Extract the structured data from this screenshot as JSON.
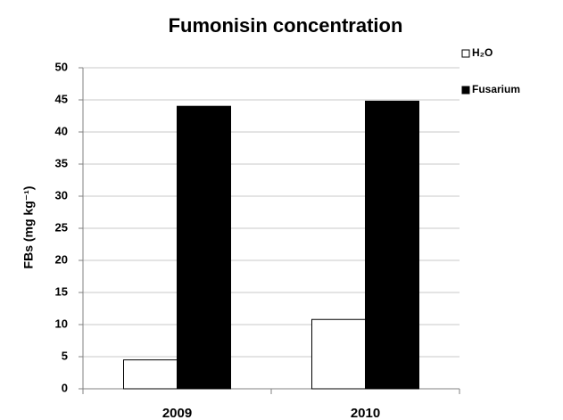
{
  "chart_data": {
    "type": "bar",
    "title": "Fumonisin concentration",
    "y_label": "FBs (mg kg⁻¹)",
    "categories": [
      "2009",
      "2010"
    ],
    "series": [
      {
        "name": "H₂O",
        "color": "#ffffff",
        "values": [
          4.5,
          10.8
        ]
      },
      {
        "name": "Fusarium",
        "color": "#000000",
        "values": [
          44,
          44.8
        ]
      }
    ],
    "ylim": [
      0,
      50
    ],
    "yticks": [
      0,
      5,
      10,
      15,
      20,
      25,
      30,
      35,
      40,
      45,
      50
    ],
    "grid": true,
    "legend": "right"
  }
}
